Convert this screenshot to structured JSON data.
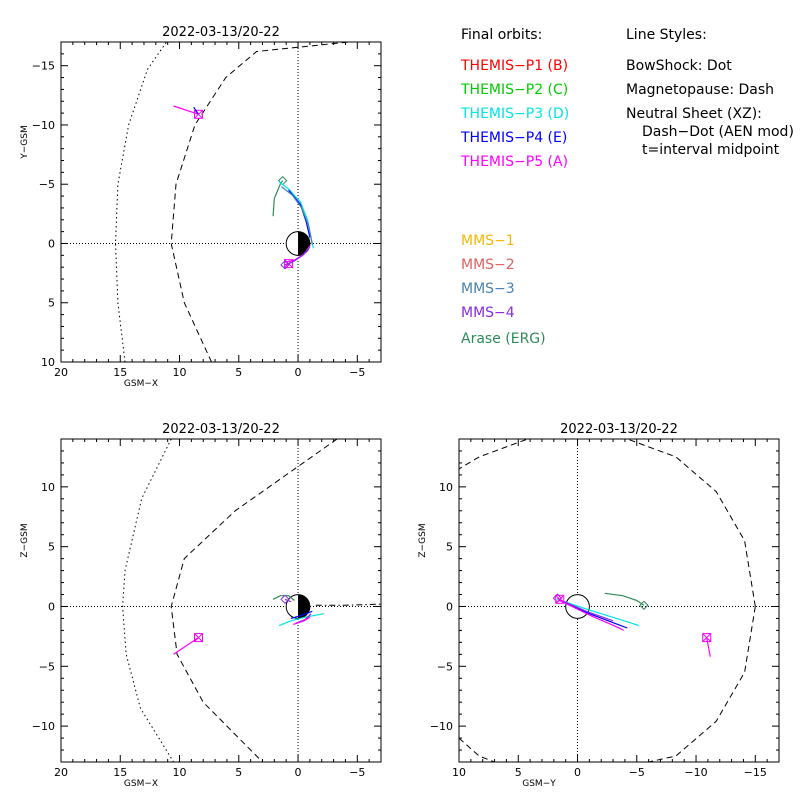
{
  "colors": {
    "themis_p1": "#ff0000",
    "themis_p2": "#00cc00",
    "themis_p3": "#00e5e5",
    "themis_p4": "#0000ff",
    "themis_p5": "#ff00ff",
    "mms1": "#f5b800",
    "mms2": "#e06060",
    "mms3": "#4682b4",
    "mms4": "#8a2be2",
    "arase": "#2e8b57"
  },
  "legend": {
    "orbits_title": "Final orbits:",
    "themis": [
      {
        "label": "THEMIS−P1 (B)",
        "color_key": "themis_p1"
      },
      {
        "label": "THEMIS−P2 (C)",
        "color_key": "themis_p2"
      },
      {
        "label": "THEMIS−P3 (D)",
        "color_key": "themis_p3"
      },
      {
        "label": "THEMIS−P4 (E)",
        "color_key": "themis_p4"
      },
      {
        "label": "THEMIS−P5 (A)",
        "color_key": "themis_p5"
      }
    ],
    "styles_title": "Line Styles:",
    "styles": [
      "BowShock: Dot",
      "Magnetopause: Dash",
      "Neutral Sheet (XZ):",
      "Dash−Dot (AEN mod)",
      "t=interval midpoint"
    ],
    "missions": [
      {
        "label": "MMS−1",
        "color_key": "mms1"
      },
      {
        "label": "MMS−2",
        "color_key": "mms2"
      },
      {
        "label": "MMS−3",
        "color_key": "mms3"
      },
      {
        "label": "MMS−4",
        "color_key": "mms4"
      },
      {
        "label": "Arase (ERG)",
        "color_key": "arase"
      }
    ]
  },
  "chart_data": [
    {
      "type": "line",
      "title": "2022-03-13/20-22",
      "xlabel": "GSM−X",
      "ylabel": "Y−GSM",
      "xlim": [
        20,
        -7
      ],
      "ylim": [
        10,
        -17
      ],
      "xticks": [
        20,
        15,
        10,
        5,
        0,
        -5
      ],
      "yticks": [
        -15,
        -10,
        -5,
        0,
        5,
        10
      ],
      "tick_labels_x": [
        "20",
        "15",
        "10",
        "5",
        "0",
        "−5"
      ],
      "tick_labels_y": [
        "−15",
        "−10",
        "−5",
        "0",
        "5",
        "10"
      ],
      "earth": {
        "shade": "night-right"
      },
      "boundaries": [
        {
          "name": "BowShock",
          "style": "dot",
          "points": [
            [
              14.6,
              10
            ],
            [
              15.2,
              5
            ],
            [
              15.4,
              0
            ],
            [
              15.2,
              -5
            ],
            [
              14.3,
              -10
            ],
            [
              12.7,
              -14.7
            ],
            [
              11.1,
              -17
            ]
          ]
        },
        {
          "name": "Magnetopause",
          "style": "dash",
          "points": [
            [
              7.3,
              10
            ],
            [
              9.6,
              5
            ],
            [
              10.7,
              0
            ],
            [
              10.3,
              -5
            ],
            [
              8.7,
              -10
            ],
            [
              6.1,
              -14
            ],
            [
              3.5,
              -16.2
            ],
            [
              -4.3,
              -17
            ]
          ]
        }
      ],
      "series": [
        {
          "color_key": "themis_p5",
          "points": [
            [
              10.5,
              -11.6
            ],
            [
              8.4,
              -10.9
            ]
          ],
          "marker": "square-cross",
          "marker_at": [
            8.4,
            -10.9
          ]
        },
        {
          "color_key": "themis_p4",
          "points": [
            [
              8.8,
              -11.5
            ],
            [
              8.4,
              -10.9
            ]
          ]
        },
        {
          "color_key": "arase",
          "points": [
            [
              2.1,
              -2.3
            ],
            [
              2.0,
              -3.8
            ],
            [
              1.5,
              -5.0
            ],
            [
              1.3,
              -5.3
            ]
          ],
          "marker": "diamond",
          "marker_at": [
            1.3,
            -5.3
          ]
        },
        {
          "color_key": "themis_p3",
          "points": [
            [
              1.6,
              -5.2
            ],
            [
              0.8,
              -4.6
            ],
            [
              -0.2,
              -3.5
            ],
            [
              -0.8,
              -2.0
            ],
            [
              -1.1,
              -0.5
            ],
            [
              -1.3,
              0.4
            ]
          ]
        },
        {
          "color_key": "themis_p4",
          "points": [
            [
              0.8,
              -4.5
            ],
            [
              -0.2,
              -3.3
            ],
            [
              -0.7,
              -1.8
            ],
            [
              -1.0,
              -0.5
            ]
          ]
        },
        {
          "color_key": "mms3",
          "points": [
            [
              1.4,
              -4.8
            ],
            [
              0.5,
              -4.1
            ],
            [
              -0.3,
              -3.0
            ],
            [
              -0.9,
              -1.5
            ],
            [
              -1.2,
              0.1
            ]
          ]
        },
        {
          "color_key": "themis_p5",
          "points": [
            [
              1.2,
              1.6
            ],
            [
              0.3,
              1.4
            ],
            [
              -0.5,
              0.9
            ],
            [
              -1.0,
              0.2
            ]
          ],
          "marker": "square-cross",
          "marker_at": [
            0.8,
            1.7
          ]
        },
        {
          "color_key": "mms4",
          "points": [
            [
              1.1,
              1.8
            ],
            [
              0.5,
              1.6
            ],
            [
              -0.4,
              1.0
            ],
            [
              -1.0,
              0.3
            ]
          ],
          "marker": "diamond",
          "marker_at": [
            1.1,
            1.8
          ]
        }
      ]
    },
    {
      "type": "line",
      "title": "2022-03-13/20-22",
      "xlabel": "GSM−X",
      "ylabel": "Z−GSM",
      "xlim": [
        20,
        -7
      ],
      "ylim": [
        -13,
        14
      ],
      "xticks": [
        20,
        15,
        10,
        5,
        0,
        -5
      ],
      "yticks": [
        -10,
        -5,
        0,
        5,
        10
      ],
      "tick_labels_x": [
        "20",
        "15",
        "10",
        "5",
        "0",
        "−5"
      ],
      "tick_labels_y": [
        "−10",
        "−5",
        "0",
        "5",
        "10"
      ],
      "earth": {
        "shade": "night-right"
      },
      "boundaries": [
        {
          "name": "BowShock",
          "style": "dot",
          "points": [
            [
              10.7,
              14
            ],
            [
              13.2,
              9
            ],
            [
              14.6,
              3
            ],
            [
              14.8,
              0
            ],
            [
              14.5,
              -4
            ],
            [
              13.3,
              -8.5
            ],
            [
              10.5,
              -13
            ]
          ]
        },
        {
          "name": "Magnetopause",
          "style": "dash",
          "points": [
            [
              -3.3,
              14
            ],
            [
              1.0,
              11
            ],
            [
              5.3,
              8
            ],
            [
              9.6,
              4
            ],
            [
              10.7,
              0
            ],
            [
              10.2,
              -4
            ],
            [
              8.0,
              -8
            ],
            [
              4.0,
              -12
            ],
            [
              3.0,
              -13
            ]
          ]
        },
        {
          "name": "Neutral Sheet",
          "style": "dashdot",
          "points": [
            [
              -1.5,
              0.1
            ],
            [
              -3.5,
              0.1
            ],
            [
              -5.5,
              0.15
            ],
            [
              -7,
              0.2
            ]
          ]
        }
      ],
      "series": [
        {
          "color_key": "themis_p5",
          "points": [
            [
              10.5,
              -4.0
            ],
            [
              8.4,
              -2.6
            ]
          ],
          "marker": "square-cross",
          "marker_at": [
            8.4,
            -2.6
          ]
        },
        {
          "color_key": "arase",
          "points": [
            [
              2.1,
              0.6
            ],
            [
              1.5,
              0.9
            ],
            [
              0.8,
              0.9
            ],
            [
              0.3,
              0.5
            ]
          ]
        },
        {
          "color_key": "themis_p3",
          "points": [
            [
              1.6,
              -1.6
            ],
            [
              0.6,
              -1.2
            ],
            [
              -0.6,
              -0.9
            ],
            [
              -2.2,
              -0.6
            ]
          ]
        },
        {
          "color_key": "themis_p4",
          "points": [
            [
              0.6,
              -1.0
            ],
            [
              -0.4,
              -0.7
            ],
            [
              -1.2,
              -0.4
            ]
          ]
        },
        {
          "color_key": "mms4",
          "points": [
            [
              0.2,
              -1.4
            ],
            [
              -0.6,
              -1.1
            ],
            [
              -1.1,
              -0.6
            ]
          ]
        },
        {
          "color_key": "themis_p5",
          "points": [
            [
              0.4,
              -1.5
            ],
            [
              -0.5,
              -1.2
            ],
            [
              -1.0,
              -0.9
            ]
          ]
        },
        {
          "color_key": "mms4",
          "points": [
            [
              1.1,
              0.6
            ],
            [
              0.6,
              0.4
            ]
          ],
          "marker": "diamond",
          "marker_at": [
            1.1,
            0.6
          ]
        }
      ]
    },
    {
      "type": "line",
      "title": "2022-03-13/20-22",
      "xlabel": "GSM−Y",
      "ylabel": "Z−GSM",
      "xlim": [
        10,
        -17
      ],
      "ylim": [
        -13,
        14
      ],
      "xticks": [
        10,
        5,
        0,
        -5,
        -10,
        -15
      ],
      "yticks": [
        -10,
        -5,
        0,
        5,
        10
      ],
      "tick_labels_x": [
        "10",
        "5",
        "0",
        "−5",
        "−10",
        "−15"
      ],
      "tick_labels_y": [
        "−10",
        "−5",
        "0",
        "5",
        "10"
      ],
      "earth": {
        "shade": "none"
      },
      "boundaries": [
        {
          "name": "Magnetopause",
          "style": "dash",
          "closed": true,
          "points": [
            [
              -15.0,
              0
            ],
            [
              -14.1,
              5.5
            ],
            [
              -11.7,
              9.6
            ],
            [
              -8.3,
              12.5
            ],
            [
              -4.2,
              14.0
            ],
            [
              0,
              14.3
            ],
            [
              4.2,
              14.0
            ],
            [
              8.3,
              12.5
            ],
            [
              10,
              11.5
            ]
          ],
          "points2": [
            [
              -15.0,
              0
            ],
            [
              -14.1,
              -5.5
            ],
            [
              -11.7,
              -9.6
            ],
            [
              -8.3,
              -12.5
            ],
            [
              -6.0,
              -13.0
            ]
          ],
          "points3": [
            [
              10,
              -11.0
            ],
            [
              8.3,
              -12.5
            ],
            [
              7.0,
              -13.0
            ]
          ]
        }
      ],
      "series": [
        {
          "color_key": "themis_p5",
          "points": [
            [
              -11.2,
              -4.2
            ],
            [
              -10.9,
              -2.6
            ]
          ],
          "marker": "square-cross",
          "marker_at": [
            -10.9,
            -2.6
          ]
        },
        {
          "color_key": "arase",
          "points": [
            [
              -2.3,
              1.1
            ],
            [
              -3.8,
              0.9
            ],
            [
              -5.0,
              0.5
            ],
            [
              -5.6,
              0.1
            ]
          ],
          "marker": "diamond",
          "marker_at": [
            -5.6,
            0.1
          ]
        },
        {
          "color_key": "themis_p3",
          "points": [
            [
              1.7,
              0.6
            ],
            [
              -1.0,
              -0.3
            ],
            [
              -3.6,
              -1.1
            ],
            [
              -5.2,
              -1.6
            ]
          ]
        },
        {
          "color_key": "themis_p4",
          "points": [
            [
              1.5,
              0.5
            ],
            [
              -1.0,
              -0.6
            ],
            [
              -3.4,
              -1.5
            ],
            [
              -4.2,
              -1.8
            ]
          ]
        },
        {
          "color_key": "themis_p5",
          "points": [
            [
              1.5,
              0.5
            ],
            [
              -1.2,
              -0.8
            ],
            [
              -3.3,
              -1.7
            ],
            [
              -3.9,
              -2.0
            ]
          ]
        },
        {
          "color_key": "mms4",
          "points": [
            [
              1.6,
              0.6
            ],
            [
              -1.0,
              -0.5
            ],
            [
              -3.0,
              -1.2
            ]
          ]
        },
        {
          "color_key": "mms4",
          "points": [
            [
              1.7,
              0.7
            ],
            [
              1.3,
              0.5
            ]
          ],
          "marker": "diamond",
          "marker_at": [
            1.7,
            0.7
          ]
        },
        {
          "color_key": "themis_p5",
          "points": [
            [
              1.5,
              0.6
            ],
            [
              1.2,
              0.4
            ]
          ],
          "marker": "square-cross",
          "marker_at": [
            1.5,
            0.6
          ]
        }
      ]
    }
  ]
}
